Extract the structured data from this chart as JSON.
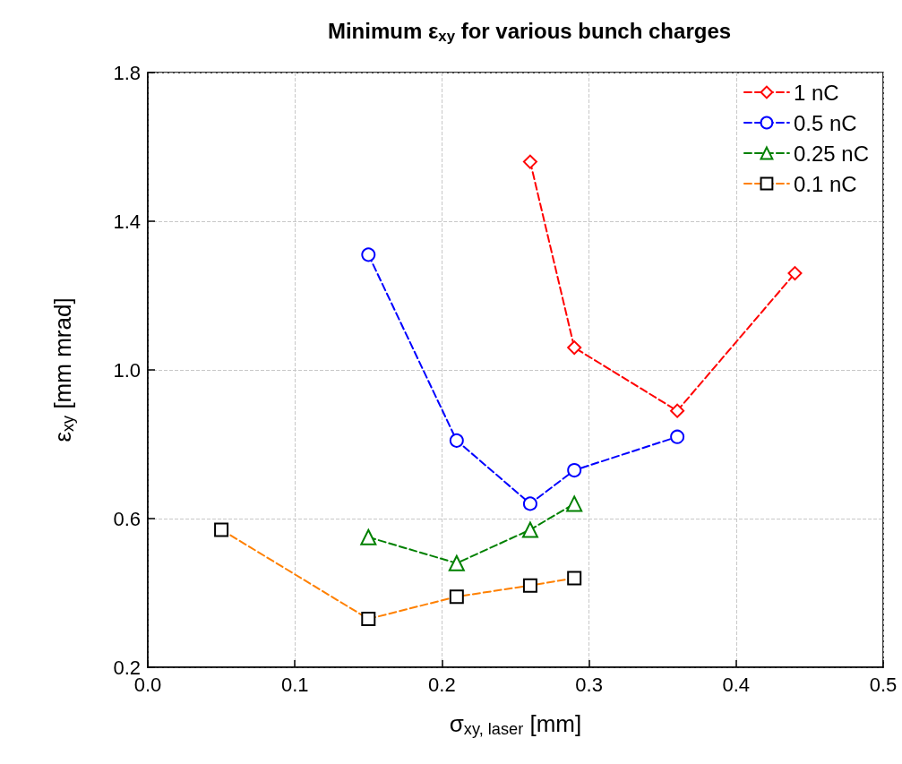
{
  "chart_data": {
    "type": "line",
    "title": "Minimum ε$_{xy}$ for various bunch charges",
    "xlabel": "σ$_{xy, laser}$ [mm]",
    "ylabel": "ε$_{xy}$ [mm mrad]",
    "xlim": [
      0,
      0.5
    ],
    "xticks": [
      {
        "value": 0,
        "label": "0.0"
      },
      0.1,
      0.2,
      0.3,
      0.4,
      0.5
    ],
    "ylim": [
      0.2,
      1.8
    ],
    "yticks": [
      0.2,
      0.6,
      {
        "value": 1,
        "label": "1.0"
      },
      1.4,
      1.8
    ],
    "grid": true,
    "legend": "top right",
    "line_style": "dashed",
    "series": [
      {
        "name": "1 nC",
        "color": "#ff0000",
        "marker": "diamond",
        "x": [
          0.26,
          0.29,
          0.36,
          0.44
        ],
        "values": [
          1.56,
          1.06,
          0.89,
          1.26
        ]
      },
      {
        "name": "0.5 nC",
        "color": "#0000ff",
        "marker": "circle",
        "x": [
          0.15,
          0.21,
          0.26,
          0.29,
          0.36
        ],
        "values": [
          1.31,
          0.81,
          0.64,
          0.73,
          0.82
        ]
      },
      {
        "name": "0.25 nC",
        "color": "#008000",
        "marker": "triangle",
        "x": [
          0.15,
          0.21,
          0.26,
          0.29
        ],
        "values": [
          0.55,
          0.48,
          0.57,
          0.64
        ]
      },
      {
        "name": "0.1 nC",
        "color": "#ff8000",
        "colors": [
          "#000000",
          "#000000",
          "#000000",
          "#000000",
          "#000000"
        ],
        "marker": "square",
        "x": [
          0.05,
          0.15,
          0.21,
          0.26,
          0.29
        ],
        "values": [
          0.57,
          0.33,
          0.39,
          0.42,
          0.44
        ]
      }
    ]
  }
}
